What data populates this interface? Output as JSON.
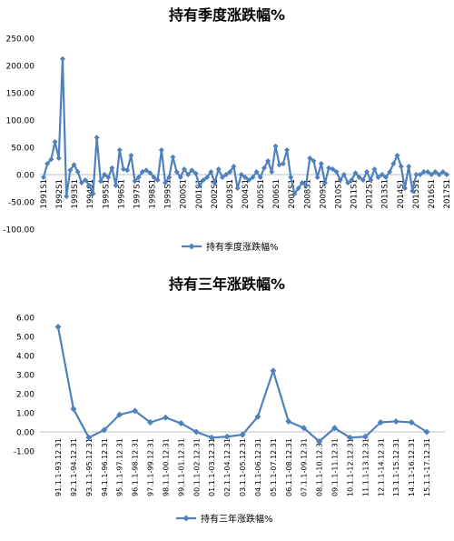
{
  "chart_data": [
    {
      "type": "line",
      "title": "持有季度涨跌幅%",
      "xlabel": "",
      "ylabel": "",
      "ylim": [
        -100,
        250
      ],
      "yticks": [
        "250.00",
        "200.00",
        "150.00",
        "100.00",
        "50.00",
        "0.00",
        "-50.00",
        "-100.00"
      ],
      "yticks_values": [
        250,
        200,
        150,
        100,
        50,
        0,
        -50,
        -100
      ],
      "grid": false,
      "legend": "bottom",
      "x_tick_labels": [
        "1991S1",
        "1992S1",
        "1993S1",
        "1994S1",
        "1995S1",
        "1996S1",
        "1997S1",
        "1998S1",
        "1999S1",
        "2000S1",
        "2001S1",
        "2002S1",
        "2003S1",
        "2004S1",
        "2005S1",
        "2006S1",
        "2007S1",
        "2008S1",
        "2009S1",
        "2010S1",
        "2011S1",
        "2012S1",
        "2013S1",
        "2014S1",
        "2015S1",
        "2016S1",
        "2017S1"
      ],
      "x_tick_labels_shown": [
        "1991S1",
        "1992S1",
        "1993S1",
        "1994S1",
        "1995S1",
        "1996S1",
        "1997S1",
        "1998S1",
        "1999S1",
        "2000S1",
        "2001S1",
        "2002S1",
        "2003S1",
        "2004S1",
        "2005S1",
        "2006S1",
        "2007S1",
        "2008S1",
        "2009S1",
        "2010S1",
        "2011S1",
        "2012S1",
        "2013S1",
        "2014S1",
        "2015S1",
        "2016S1",
        "2017S1"
      ],
      "series": [
        {
          "name": "持有季度涨跌幅%",
          "color": "#4f81bd",
          "values": [
            -5,
            20,
            28,
            60,
            30,
            212,
            -40,
            8,
            18,
            5,
            -15,
            -10,
            -20,
            -35,
            68,
            -12,
            0,
            -5,
            12,
            -20,
            45,
            10,
            8,
            35,
            -12,
            -5,
            5,
            8,
            3,
            -5,
            -10,
            45,
            -15,
            -5,
            32,
            5,
            -5,
            10,
            0,
            8,
            2,
            -20,
            -10,
            -5,
            5,
            -15,
            10,
            -5,
            0,
            5,
            15,
            -25,
            0,
            -5,
            -10,
            -5,
            5,
            -5,
            12,
            25,
            5,
            52,
            18,
            20,
            45,
            -5,
            -35,
            -25,
            -15,
            -20,
            30,
            25,
            -5,
            20,
            -15,
            12,
            10,
            5,
            -10,
            0,
            -15,
            -10,
            3,
            -5,
            -10,
            5,
            -10,
            10,
            -5,
            0,
            -5,
            5,
            20,
            35,
            15,
            -25,
            15,
            -30,
            0,
            0,
            5,
            5,
            0,
            5,
            0,
            5,
            0
          ]
        }
      ]
    },
    {
      "type": "line",
      "title": "持有三年涨跌幅%",
      "xlabel": "",
      "ylabel": "",
      "ylim": [
        -1,
        6
      ],
      "yticks": [
        "6.00",
        "5.00",
        "4.00",
        "3.00",
        "2.00",
        "1.00",
        "0.00",
        "-1.00"
      ],
      "yticks_values": [
        6,
        5,
        4,
        3,
        2,
        1,
        0,
        -1
      ],
      "grid": false,
      "legend": "bottom",
      "categories": [
        "91.1.1-93.12.31",
        "92.1.1-94.12.31",
        "93.1.1-95.12.31",
        "94.1.1-96.12.31",
        "95.1.1-97.12.31",
        "96.1.1-98.12.31",
        "97.1.1-99.12.31",
        "98.1.1-00.12.31",
        "99.1.1-01.12.31",
        "00.1.1-02.12.31",
        "01.1.1-03.12.31",
        "02.1.1-04.12.31",
        "03.1.1-05.12.31",
        "04.1.1-06.12.31",
        "05.1.1-07.12.31",
        "06.1.1-08.12.31",
        "07.1.1-09.12.31",
        "08.1.1-10.12.31",
        "09.1.1-11.12.31",
        "10.1.1-12.12.31",
        "11.1.1-13.12.31",
        "12.1.1-14.12.31",
        "13.1.1-15.12.31",
        "14.1.1-16.12.31",
        "15.1.1-17.12.31"
      ],
      "series": [
        {
          "name": "持有三年涨跌幅%",
          "color": "#4f81bd",
          "values": [
            5.5,
            1.2,
            -0.3,
            0.1,
            0.9,
            1.1,
            0.5,
            0.75,
            0.45,
            0.0,
            -0.3,
            -0.25,
            -0.15,
            0.8,
            3.2,
            0.55,
            0.2,
            -0.5,
            0.2,
            -0.3,
            -0.25,
            0.5,
            0.55,
            0.5,
            0.0
          ]
        }
      ]
    }
  ]
}
